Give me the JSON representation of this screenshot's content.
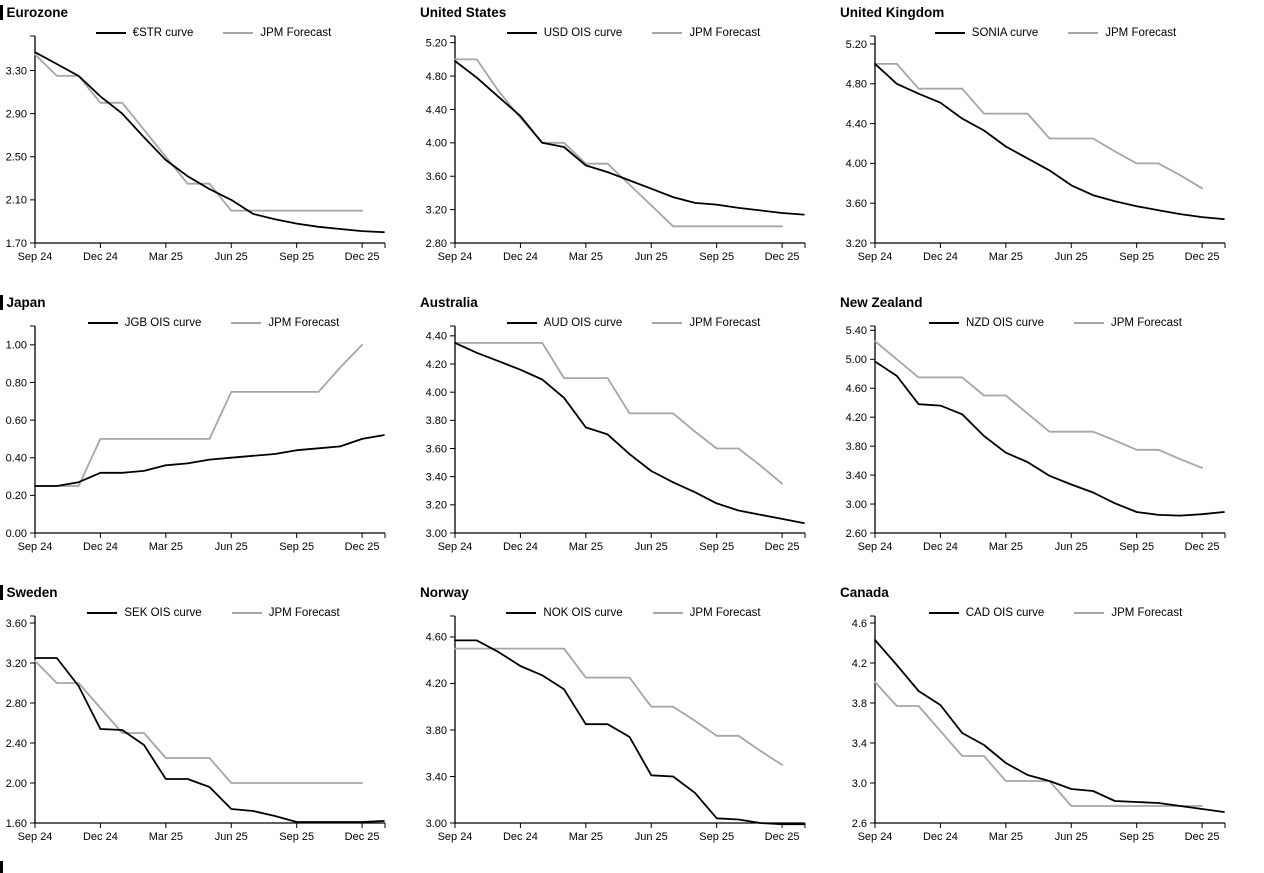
{
  "page": {
    "background": "#ffffff"
  },
  "colors": {
    "main": "#000000",
    "forecast": "#a6a6a6",
    "axis": "#000000",
    "text": "#000000"
  },
  "x_axis": {
    "tick_labels": [
      "Sep 24",
      "Dec 24",
      "Mar 25",
      "Jun 25",
      "Sep 25",
      "Dec 25"
    ],
    "tick_indices": [
      0,
      3,
      6,
      9,
      12,
      15
    ],
    "max_index": 16.05
  },
  "chart_data": [
    {
      "id": "eurozone",
      "type": "line",
      "title": "Eurozone",
      "section_bar": true,
      "ylim": [
        1.7,
        3.62
      ],
      "ytick_labels": [
        "1.70",
        "2.10",
        "2.50",
        "2.90",
        "3.30"
      ],
      "legend_position": "top-center",
      "grid": false,
      "series": [
        {
          "key": "estr-curve",
          "name": "€STR curve",
          "color_key": "main",
          "values": [
            3.47,
            3.36,
            3.25,
            3.06,
            2.9,
            2.68,
            2.47,
            2.32,
            2.2,
            2.1,
            1.97,
            1.92,
            1.88,
            1.85,
            1.83,
            1.81,
            1.8
          ]
        },
        {
          "key": "jpm-forecast",
          "name": "JPM Forecast",
          "color_key": "forecast",
          "values": [
            3.45,
            3.25,
            3.25,
            3.0,
            3.0,
            2.75,
            2.5,
            2.25,
            2.25,
            2.0,
            2.0,
            2.0,
            2.0,
            2.0,
            2.0,
            2.0
          ]
        }
      ]
    },
    {
      "id": "united-states",
      "type": "line",
      "title": "United States",
      "section_bar": false,
      "ylim": [
        2.8,
        5.28
      ],
      "ytick_labels": [
        "2.80",
        "3.20",
        "3.60",
        "4.00",
        "4.40",
        "4.80",
        "5.20"
      ],
      "legend_position": "top-center",
      "grid": false,
      "series": [
        {
          "key": "usd-ois-curve",
          "name": "USD OIS curve",
          "color_key": "main",
          "values": [
            4.98,
            4.78,
            4.55,
            4.32,
            4.0,
            3.95,
            3.73,
            3.65,
            3.55,
            3.45,
            3.35,
            3.28,
            3.26,
            3.22,
            3.19,
            3.16,
            3.14
          ]
        },
        {
          "key": "jpm-forecast",
          "name": "JPM Forecast",
          "color_key": "forecast",
          "values": [
            5.0,
            5.0,
            4.62,
            4.3,
            4.0,
            4.0,
            3.75,
            3.75,
            3.5,
            3.25,
            3.0,
            3.0,
            3.0,
            3.0,
            3.0,
            3.0
          ]
        }
      ]
    },
    {
      "id": "united-kingdom",
      "type": "line",
      "title": "United Kingdom",
      "section_bar": false,
      "ylim": [
        3.2,
        5.28
      ],
      "ytick_labels": [
        "3.20",
        "3.60",
        "4.00",
        "4.40",
        "4.80",
        "5.20"
      ],
      "legend_position": "top-center",
      "grid": false,
      "series": [
        {
          "key": "sonia-curve",
          "name": "SONIA curve",
          "color_key": "main",
          "values": [
            5.0,
            4.8,
            4.7,
            4.61,
            4.45,
            4.33,
            4.17,
            4.05,
            3.93,
            3.78,
            3.68,
            3.62,
            3.57,
            3.53,
            3.49,
            3.46,
            3.44
          ]
        },
        {
          "key": "jpm-forecast",
          "name": "JPM Forecast",
          "color_key": "forecast",
          "values": [
            5.0,
            5.0,
            4.75,
            4.75,
            4.75,
            4.5,
            4.5,
            4.5,
            4.25,
            4.25,
            4.25,
            4.12,
            4.0,
            4.0,
            3.88,
            3.75
          ]
        }
      ]
    },
    {
      "id": "japan",
      "type": "line",
      "title": "Japan",
      "section_bar": true,
      "ylim": [
        0.0,
        1.1
      ],
      "ytick_labels": [
        "0.00",
        "0.20",
        "0.40",
        "0.60",
        "0.80",
        "1.00"
      ],
      "legend_position": "top-center",
      "grid": false,
      "series": [
        {
          "key": "jgb-ois-curve",
          "name": "JGB OIS curve",
          "color_key": "main",
          "values": [
            0.25,
            0.25,
            0.27,
            0.32,
            0.32,
            0.33,
            0.36,
            0.37,
            0.39,
            0.4,
            0.41,
            0.42,
            0.44,
            0.45,
            0.46,
            0.5,
            0.52
          ]
        },
        {
          "key": "jpm-forecast",
          "name": "JPM Forecast",
          "color_key": "forecast",
          "values": [
            0.25,
            0.25,
            0.25,
            0.5,
            0.5,
            0.5,
            0.5,
            0.5,
            0.5,
            0.75,
            0.75,
            0.75,
            0.75,
            0.75,
            0.88,
            1.0
          ]
        }
      ]
    },
    {
      "id": "australia",
      "type": "line",
      "title": "Australia",
      "section_bar": false,
      "ylim": [
        3.0,
        4.47
      ],
      "ytick_labels": [
        "3.00",
        "3.20",
        "3.40",
        "3.60",
        "3.80",
        "4.00",
        "4.20",
        "4.40"
      ],
      "legend_position": "top-center",
      "grid": false,
      "series": [
        {
          "key": "aud-ois-curve",
          "name": "AUD OIS curve",
          "color_key": "main",
          "values": [
            4.35,
            4.28,
            4.22,
            4.16,
            4.09,
            3.96,
            3.75,
            3.7,
            3.56,
            3.44,
            3.36,
            3.29,
            3.21,
            3.16,
            3.13,
            3.1,
            3.07
          ]
        },
        {
          "key": "jpm-forecast",
          "name": "JPM Forecast",
          "color_key": "forecast",
          "values": [
            4.35,
            4.35,
            4.35,
            4.35,
            4.35,
            4.1,
            4.1,
            4.1,
            3.85,
            3.85,
            3.85,
            3.72,
            3.6,
            3.6,
            3.48,
            3.35
          ]
        }
      ]
    },
    {
      "id": "new-zealand",
      "type": "line",
      "title": "New Zealand",
      "section_bar": false,
      "ylim": [
        2.6,
        5.46
      ],
      "ytick_labels": [
        "2.60",
        "3.00",
        "3.40",
        "3.80",
        "4.20",
        "4.60",
        "5.00",
        "5.40"
      ],
      "legend_position": "top-center",
      "grid": false,
      "series": [
        {
          "key": "nzd-ois-curve",
          "name": "NZD OIS curve",
          "color_key": "main",
          "values": [
            4.97,
            4.77,
            4.38,
            4.36,
            4.24,
            3.94,
            3.71,
            3.58,
            3.39,
            3.27,
            3.16,
            3.01,
            2.89,
            2.85,
            2.84,
            2.86,
            2.89
          ]
        },
        {
          "key": "jpm-forecast",
          "name": "JPM Forecast",
          "color_key": "forecast",
          "values": [
            5.25,
            5.0,
            4.75,
            4.75,
            4.75,
            4.5,
            4.5,
            4.25,
            4.0,
            4.0,
            4.0,
            3.88,
            3.75,
            3.75,
            3.62,
            3.5
          ]
        }
      ]
    },
    {
      "id": "sweden",
      "type": "line",
      "title": "Sweden",
      "section_bar": true,
      "ylim": [
        1.6,
        3.67
      ],
      "ytick_labels": [
        "1.60",
        "2.00",
        "2.40",
        "2.80",
        "3.20",
        "3.60"
      ],
      "legend_position": "top-center",
      "grid": false,
      "series": [
        {
          "key": "sek-ois-curve",
          "name": "SEK OIS curve",
          "color_key": "main",
          "values": [
            3.25,
            3.25,
            2.97,
            2.54,
            2.53,
            2.38,
            2.04,
            2.04,
            1.96,
            1.74,
            1.72,
            1.67,
            1.61,
            1.61,
            1.61,
            1.61,
            1.62
          ]
        },
        {
          "key": "jpm-forecast",
          "name": "JPM Forecast",
          "color_key": "forecast",
          "values": [
            3.22,
            3.0,
            3.0,
            2.75,
            2.5,
            2.5,
            2.25,
            2.25,
            2.25,
            2.0,
            2.0,
            2.0,
            2.0,
            2.0,
            2.0,
            2.0
          ]
        }
      ]
    },
    {
      "id": "norway",
      "type": "line",
      "title": "Norway",
      "section_bar": false,
      "ylim": [
        3.0,
        4.78
      ],
      "ytick_labels": [
        "3.00",
        "3.40",
        "3.80",
        "4.20",
        "4.60"
      ],
      "legend_position": "top-center",
      "grid": false,
      "series": [
        {
          "key": "nok-ois-curve",
          "name": "NOK OIS curve",
          "color_key": "main",
          "values": [
            4.57,
            4.57,
            4.47,
            4.35,
            4.27,
            4.15,
            3.85,
            3.85,
            3.74,
            3.41,
            3.4,
            3.26,
            3.04,
            3.03,
            3.0,
            2.99,
            2.99
          ]
        },
        {
          "key": "jpm-forecast",
          "name": "JPM Forecast",
          "color_key": "forecast",
          "values": [
            4.5,
            4.5,
            4.5,
            4.5,
            4.5,
            4.5,
            4.25,
            4.25,
            4.25,
            4.0,
            4.0,
            3.88,
            3.75,
            3.75,
            3.62,
            3.5
          ]
        }
      ]
    },
    {
      "id": "canada",
      "type": "line",
      "title": "Canada",
      "section_bar": false,
      "ylim": [
        2.6,
        4.67
      ],
      "ytick_labels": [
        "2.6",
        "3.0",
        "3.4",
        "3.8",
        "4.2",
        "4.6"
      ],
      "legend_position": "top-center",
      "grid": false,
      "series": [
        {
          "key": "cad-ois-curve",
          "name": "CAD OIS curve",
          "color_key": "main",
          "values": [
            4.43,
            4.18,
            3.92,
            3.78,
            3.5,
            3.38,
            3.2,
            3.08,
            3.02,
            2.94,
            2.92,
            2.82,
            2.81,
            2.8,
            2.77,
            2.74,
            2.71
          ]
        },
        {
          "key": "jpm-forecast",
          "name": "JPM Forecast",
          "color_key": "forecast",
          "values": [
            4.01,
            3.77,
            3.77,
            3.52,
            3.27,
            3.27,
            3.02,
            3.02,
            3.02,
            2.77,
            2.77,
            2.77,
            2.77,
            2.77,
            2.77,
            2.77
          ]
        }
      ]
    }
  ]
}
